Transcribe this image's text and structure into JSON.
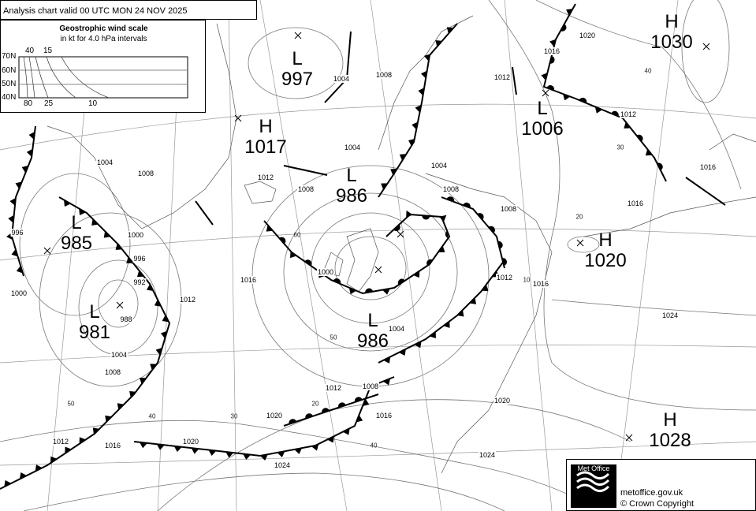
{
  "header": {
    "title": "Analysis chart  valid 00 UTC MON 24  NOV 2025"
  },
  "legend": {
    "title": "Geostrophic wind scale",
    "subtitle": "in kt for 4.0 hPa intervals",
    "latitudes": [
      "70N",
      "60N",
      "50N",
      "40N"
    ],
    "top_speeds": [
      "40",
      "15"
    ],
    "bottom_speeds": [
      "80",
      "25",
      "10"
    ]
  },
  "pressure_centres": [
    {
      "type": "L",
      "value": "997"
    },
    {
      "type": "H",
      "value": "1030"
    },
    {
      "type": "L",
      "value": "1006"
    },
    {
      "type": "H",
      "value": "1017"
    },
    {
      "type": "L",
      "value": "986"
    },
    {
      "type": "L",
      "value": "985"
    },
    {
      "type": "H",
      "value": "1020"
    },
    {
      "type": "L",
      "value": "981"
    },
    {
      "type": "L",
      "value": "986"
    },
    {
      "type": "H",
      "value": "1028"
    }
  ],
  "isobar_labels": [
    "1004",
    "1008",
    "1020",
    "1016",
    "1012",
    "1012",
    "1004",
    "1008",
    "1004",
    "1004",
    "1012",
    "1008",
    "1008",
    "1008",
    "1016",
    "1016",
    "996",
    "1000",
    "996",
    "992",
    "1000",
    "988",
    "1012",
    "1016",
    "1000",
    "1012",
    "1016",
    "1004",
    "1008",
    "1004",
    "1024",
    "1008",
    "1012",
    "1016",
    "1020",
    "1020",
    "1020",
    "1024",
    "1016",
    "1012",
    "1024"
  ],
  "wind_labels": [
    "60",
    "50",
    "40",
    "30",
    "50",
    "40",
    "20",
    "10",
    "20",
    "30",
    "40"
  ],
  "footer": {
    "logo_text": "Met Office",
    "site": "metoffice.gov.uk",
    "copyright": "© Crown Copyright"
  }
}
